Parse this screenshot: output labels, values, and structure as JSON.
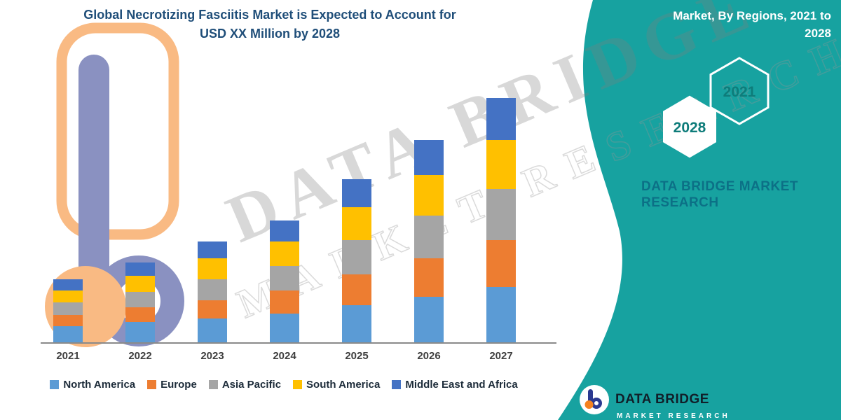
{
  "colors": {
    "teal": "#17A2A0",
    "title_text": "#1F4E79",
    "brand_text": "#0C7086",
    "footer_text": "#111F29"
  },
  "title": {
    "line1": "Global Necrotizing Fasciitis Market is Expected to Account for",
    "line2": "USD XX Million by 2028"
  },
  "side_panel": {
    "heading_line1": "Market, By Regions, 2021 to",
    "heading_line2": "2028",
    "hexagon_top": "2021",
    "hexagon_bottom": "2028",
    "brand_line1": "DATA BRIDGE MARKET",
    "brand_line2": "RESEARCH"
  },
  "watermark": {
    "line1": "DATA BRIDGE",
    "line2": "MARKET RESEARCH"
  },
  "footer": {
    "brand": "DATA BRIDGE",
    "sub": "MARKET RESEARCH"
  },
  "chart_data": {
    "type": "bar",
    "stacked": true,
    "title": "Global Necrotizing Fasciitis Market is Expected to Account for USD XX Million by 2028",
    "categories": [
      "2021",
      "2022",
      "2023",
      "2024",
      "2025",
      "2026",
      "2027"
    ],
    "series": [
      {
        "name": "North America",
        "color": "#5B9BD5",
        "values": [
          7,
          8.5,
          10,
          12,
          15.5,
          19,
          23
        ]
      },
      {
        "name": "Europe",
        "color": "#ED7D31",
        "values": [
          4.5,
          6,
          7.5,
          9.5,
          12.5,
          15.5,
          19
        ]
      },
      {
        "name": "Asia Pacific",
        "color": "#A5A5A5",
        "values": [
          5,
          6.5,
          8.5,
          10,
          14,
          17.5,
          21
        ]
      },
      {
        "name": "South America",
        "color": "#FFC000",
        "values": [
          5,
          6.5,
          8.5,
          10,
          13.5,
          16.5,
          20
        ]
      },
      {
        "name": "Middle East and Africa",
        "color": "#4472C4",
        "values": [
          4.5,
          5.5,
          7,
          8.5,
          11.5,
          14.5,
          17
        ]
      }
    ],
    "value_axis_visible": false,
    "units": "USD Million (XX, undisclosed)",
    "legend_position": "bottom",
    "grid": false
  }
}
